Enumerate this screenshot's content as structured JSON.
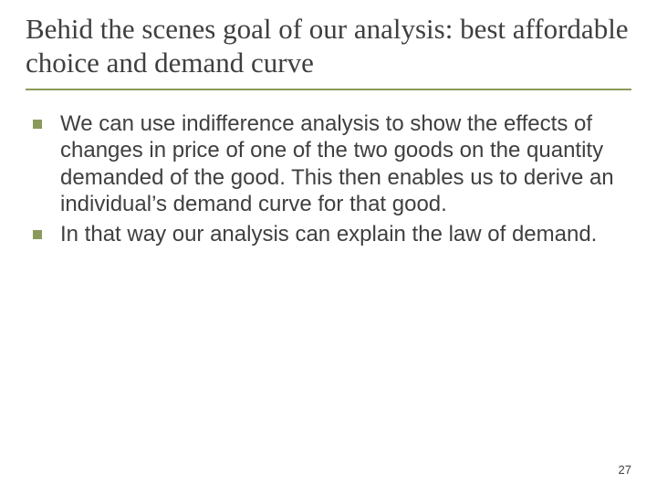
{
  "slide": {
    "title": "Behid the scenes goal of our analysis: best affordable choice and demand curve",
    "title_fontsize": 31,
    "title_color": "#3f3f3f",
    "title_font_family": "Garamond, 'Times New Roman', Georgia, serif",
    "underline_color": "#8a9a5b",
    "underline_width": 2,
    "background_color": "#ffffff",
    "bullets": [
      {
        "text": "We can use indifference analysis to show the effects of changes in price of one of the two goods on the quantity demanded of the good. This then enables us to derive an individual’s demand curve for that good."
      },
      {
        "text": "In that way our analysis can explain the law of demand."
      }
    ],
    "bullet_marker": {
      "shape": "square",
      "size": 10,
      "color": "#8a9a5b"
    },
    "body_fontsize": 24,
    "body_color": "#3f3f3f",
    "body_font_family": "Arial, Helvetica, sans-serif",
    "page_number": "27",
    "page_number_fontsize": 13
  }
}
